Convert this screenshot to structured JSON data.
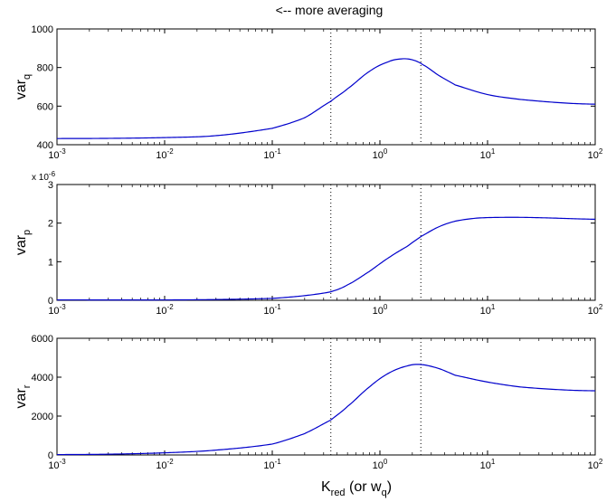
{
  "figure": {
    "title": "<-- more averaging",
    "xlabel_main": "K",
    "xlabel_sub1": "red",
    "xlabel_mid": " (or w",
    "xlabel_sub2": "q",
    "xlabel_end": ")"
  },
  "chart_data": [
    {
      "type": "line",
      "ylabel_main": "var",
      "ylabel_sub": "q",
      "xscale": "log",
      "xlim": [
        0.001,
        100
      ],
      "ylim": [
        400,
        1000
      ],
      "yticks": [
        400,
        600,
        800,
        1000
      ],
      "ytick_labels": [
        "400",
        "600",
        "800",
        "1000"
      ],
      "y_multiplier": "",
      "xticks": [
        0.001,
        0.01,
        0.1,
        1,
        10,
        100
      ],
      "vlines": [
        0.35,
        2.4
      ],
      "series": [
        {
          "x": [
            0.001,
            0.003,
            0.01,
            0.03,
            0.1,
            0.2,
            0.35,
            0.5,
            0.8,
            1.2,
            1.6,
            2.0,
            2.5,
            3.5,
            5,
            10,
            20,
            50,
            100
          ],
          "y": [
            432,
            433,
            437,
            447,
            485,
            540,
            625,
            690,
            780,
            830,
            845,
            840,
            815,
            760,
            710,
            660,
            635,
            617,
            610
          ]
        }
      ]
    },
    {
      "type": "line",
      "ylabel_main": "var",
      "ylabel_sub": "p",
      "xscale": "log",
      "xlim": [
        0.001,
        100
      ],
      "ylim": [
        0,
        3
      ],
      "yticks": [
        0,
        1,
        2,
        3
      ],
      "ytick_labels": [
        "0",
        "1",
        "2",
        "3"
      ],
      "y_multiplier": "x 10",
      "y_multiplier_exp": "-6",
      "xticks": [
        0.001,
        0.01,
        0.1,
        1,
        10,
        100
      ],
      "vlines": [
        0.35,
        2.4
      ],
      "series": [
        {
          "x": [
            0.001,
            0.01,
            0.03,
            0.1,
            0.2,
            0.35,
            0.5,
            0.8,
            1.2,
            1.8,
            2.4,
            3.5,
            5,
            8,
            15,
            30,
            100
          ],
          "y": [
            0.01,
            0.01,
            0.02,
            0.05,
            0.12,
            0.22,
            0.4,
            0.75,
            1.1,
            1.4,
            1.65,
            1.9,
            2.05,
            2.13,
            2.15,
            2.14,
            2.1
          ]
        }
      ]
    },
    {
      "type": "line",
      "ylabel_main": "var",
      "ylabel_sub": "r",
      "xscale": "log",
      "xlim": [
        0.001,
        100
      ],
      "ylim": [
        0,
        6000
      ],
      "yticks": [
        0,
        2000,
        4000,
        6000
      ],
      "ytick_labels": [
        "0",
        "2000",
        "4000",
        "6000"
      ],
      "y_multiplier": "",
      "xticks": [
        0.001,
        0.01,
        0.1,
        1,
        10,
        100
      ],
      "vlines": [
        0.35,
        2.4
      ],
      "series": [
        {
          "x": [
            0.001,
            0.003,
            0.01,
            0.03,
            0.1,
            0.2,
            0.35,
            0.5,
            0.8,
            1.2,
            1.8,
            2.4,
            3.5,
            5,
            10,
            20,
            50,
            100
          ],
          "y": [
            20,
            40,
            110,
            250,
            560,
            1100,
            1800,
            2500,
            3500,
            4200,
            4580,
            4650,
            4450,
            4100,
            3750,
            3500,
            3350,
            3300
          ]
        }
      ]
    }
  ]
}
